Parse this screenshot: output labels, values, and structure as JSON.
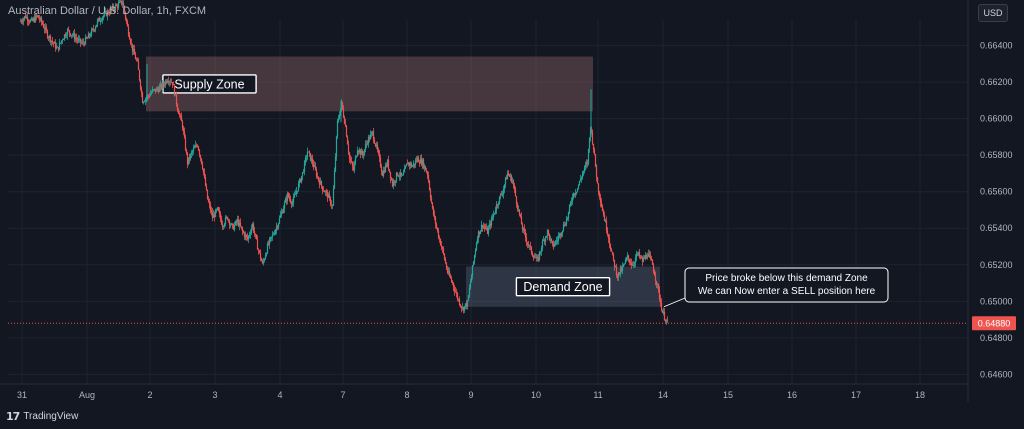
{
  "header": {
    "title": "Australian Dollar / U.S. Dollar, 1h, FXCM",
    "currency_button": "USD"
  },
  "footer": {
    "brand": "TradingView"
  },
  "colors": {
    "background": "#131722",
    "up": "#26a69a",
    "down": "#ef5350",
    "grid": "#1f2330",
    "price_line": "#ef5350"
  },
  "chart_data": {
    "type": "candlestick",
    "y_axis": {
      "min": 0.6452,
      "max": 0.6654,
      "ticks": [
        "0.66400",
        "0.66200",
        "0.66000",
        "0.65800",
        "0.65600",
        "0.65400",
        "0.65200",
        "0.65000",
        "0.64800",
        "0.64600"
      ]
    },
    "x_axis": {
      "ticks": [
        "31",
        "Aug",
        "2",
        "3",
        "4",
        "7",
        "8",
        "9",
        "10",
        "11",
        "14",
        "15",
        "16",
        "17",
        "18"
      ]
    },
    "last_price": "0.64880",
    "price_path": [
      [
        0,
        0.6653
      ],
      [
        6,
        0.6656
      ],
      [
        12,
        0.6653
      ],
      [
        18,
        0.6656
      ],
      [
        23,
        0.6652
      ],
      [
        28,
        0.6646
      ],
      [
        33,
        0.6642
      ],
      [
        38,
        0.6638
      ],
      [
        43,
        0.6644
      ],
      [
        48,
        0.6648
      ],
      [
        53,
        0.6646
      ],
      [
        58,
        0.6643
      ],
      [
        63,
        0.6641
      ],
      [
        68,
        0.6644
      ],
      [
        73,
        0.6648
      ],
      [
        78,
        0.6653
      ],
      [
        83,
        0.6656
      ],
      [
        88,
        0.6658
      ],
      [
        93,
        0.666
      ],
      [
        98,
        0.6662
      ],
      [
        103,
        0.6664
      ],
      [
        108,
        0.665
      ],
      [
        113,
        0.6638
      ],
      [
        118,
        0.663
      ],
      [
        123,
        0.661
      ],
      [
        128,
        0.6612
      ],
      [
        133,
        0.6615
      ],
      [
        138,
        0.6616
      ],
      [
        143,
        0.6618
      ],
      [
        148,
        0.6622
      ],
      [
        153,
        0.662
      ],
      [
        158,
        0.6606
      ],
      [
        163,
        0.6596
      ],
      [
        168,
        0.6576
      ],
      [
        173,
        0.6582
      ],
      [
        178,
        0.6586
      ],
      [
        183,
        0.6574
      ],
      [
        188,
        0.6556
      ],
      [
        193,
        0.6546
      ],
      [
        198,
        0.655
      ],
      [
        203,
        0.6542
      ],
      [
        208,
        0.6546
      ],
      [
        213,
        0.654
      ],
      [
        218,
        0.6544
      ],
      [
        223,
        0.6538
      ],
      [
        228,
        0.6534
      ],
      [
        233,
        0.6542
      ],
      [
        238,
        0.653
      ],
      [
        243,
        0.652
      ],
      [
        248,
        0.653
      ],
      [
        253,
        0.6536
      ],
      [
        258,
        0.6542
      ],
      [
        263,
        0.655
      ],
      [
        268,
        0.6558
      ],
      [
        273,
        0.6554
      ],
      [
        278,
        0.6562
      ],
      [
        283,
        0.657
      ],
      [
        288,
        0.6582
      ],
      [
        293,
        0.6576
      ],
      [
        298,
        0.6568
      ],
      [
        303,
        0.6562
      ],
      [
        308,
        0.6558
      ],
      [
        313,
        0.6552
      ],
      [
        318,
        0.6598
      ],
      [
        322,
        0.6608
      ],
      [
        326,
        0.6596
      ],
      [
        330,
        0.6578
      ],
      [
        334,
        0.6572
      ],
      [
        338,
        0.6584
      ],
      [
        343,
        0.658
      ],
      [
        348,
        0.6588
      ],
      [
        353,
        0.6592
      ],
      [
        358,
        0.6582
      ],
      [
        363,
        0.657
      ],
      [
        368,
        0.6576
      ],
      [
        373,
        0.6564
      ],
      [
        378,
        0.657
      ],
      [
        383,
        0.6568
      ],
      [
        388,
        0.6576
      ],
      [
        393,
        0.6574
      ],
      [
        398,
        0.6578
      ],
      [
        403,
        0.6576
      ],
      [
        408,
        0.657
      ],
      [
        413,
        0.655
      ],
      [
        418,
        0.6538
      ],
      [
        423,
        0.6528
      ],
      [
        428,
        0.6516
      ],
      [
        433,
        0.651
      ],
      [
        438,
        0.6502
      ],
      [
        443,
        0.6496
      ],
      [
        448,
        0.6499
      ],
      [
        453,
        0.6518
      ],
      [
        458,
        0.6536
      ],
      [
        463,
        0.6542
      ],
      [
        468,
        0.6538
      ],
      [
        473,
        0.6546
      ],
      [
        478,
        0.6554
      ],
      [
        483,
        0.656
      ],
      [
        488,
        0.657
      ],
      [
        493,
        0.6566
      ],
      [
        498,
        0.6552
      ],
      [
        503,
        0.654
      ],
      [
        508,
        0.6532
      ],
      [
        513,
        0.6526
      ],
      [
        518,
        0.6522
      ],
      [
        523,
        0.6532
      ],
      [
        528,
        0.6538
      ],
      [
        533,
        0.653
      ],
      [
        538,
        0.6534
      ],
      [
        543,
        0.654
      ],
      [
        548,
        0.6546
      ],
      [
        553,
        0.6558
      ],
      [
        558,
        0.6562
      ],
      [
        563,
        0.657
      ],
      [
        568,
        0.6576
      ],
      [
        571,
        0.6596
      ],
      [
        574,
        0.6584
      ],
      [
        578,
        0.6564
      ],
      [
        583,
        0.655
      ],
      [
        588,
        0.6538
      ],
      [
        593,
        0.6524
      ],
      [
        598,
        0.6514
      ],
      [
        603,
        0.6518
      ],
      [
        608,
        0.6524
      ],
      [
        613,
        0.652
      ],
      [
        618,
        0.6526
      ],
      [
        623,
        0.6522
      ],
      [
        628,
        0.6526
      ],
      [
        633,
        0.652
      ],
      [
        638,
        0.6508
      ],
      [
        643,
        0.6494
      ],
      [
        648,
        0.6488
      ]
    ],
    "zones": [
      {
        "label": "Supply Zone",
        "x": [
          126,
          573
        ],
        "y": [
          0.6604,
          0.6634
        ],
        "color": "#9c6a6a"
      },
      {
        "label": "Demand Zone",
        "x": [
          446,
          640
        ],
        "y": [
          0.6497,
          0.6519
        ],
        "color": "#5d6a7e"
      }
    ],
    "annotation": {
      "lines": [
        "Price broke below this demand Zone",
        "We can Now enter a SELL position here"
      ]
    }
  }
}
